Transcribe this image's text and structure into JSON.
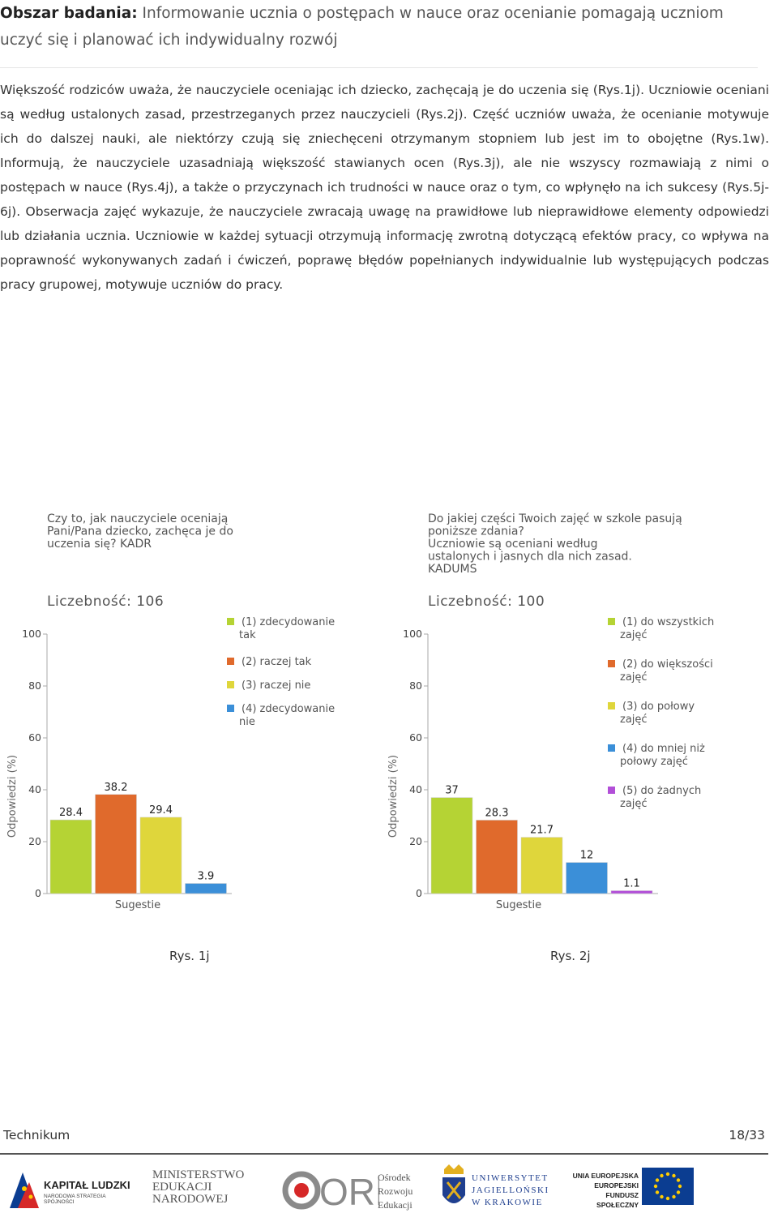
{
  "header": {
    "label": "Obszar badania:",
    "title": "Informowanie ucznia o postępach w nauce oraz ocenianie pomagają uczniom uczyć się i planować ich indywidualny rozwój"
  },
  "body": {
    "paragraph": "Większość rodziców uważa, że nauczyciele oceniając ich dziecko, zachęcają je do uczenia się (Rys.1j). Uczniowie oceniani są według ustalonych zasad, przestrzeganych przez nauczycieli (Rys.2j). Część uczniów uważa, że ocenianie motywuje ich do dalszej nauki, ale niektórzy czują się zniechęceni otrzymanym stopniem lub jest im to obojętne (Rys.1w). Informują, że nauczyciele uzasadniają większość stawianych ocen (Rys.3j), ale nie wszyscy rozmawiają z nimi o postępach w nauce (Rys.4j), a także o przyczynach ich trudności w nauce oraz o tym, co wpłynęło na ich sukcesy (Rys.5j-6j). Obserwacja zajęć wykazuje, że nauczyciele zwracają uwagę na prawidłowe lub nieprawidłowe elementy odpowiedzi lub działania ucznia. Uczniowie w każdej sytuacji otrzymują informację zwrotną dotyczącą efektów pracy, co wpływa na poprawność wykonywanych zadań i ćwiczeń, poprawę błędów popełnianych indywidualnie lub występujących podczas pracy grupowej, motywuje uczniów do pracy."
  },
  "chart_data": [
    {
      "type": "bar",
      "title": [
        "Czy to, jak nauczyciele oceniają",
        "Pani/Pana dziecko, zachęca je do",
        "uczenia się? KADR"
      ],
      "count_label": "Liczebność: 106",
      "xlabel": "Sugestie",
      "ylabel": "Odpowiedzi (%)",
      "ylim": [
        0,
        100
      ],
      "yticks": [
        "0",
        "20",
        "40",
        "60",
        "80",
        "100"
      ],
      "grid": false,
      "legend_position": "right",
      "categories": [
        [
          "(1) zdecydowanie",
          "tak"
        ],
        [
          "(2) raczej tak"
        ],
        [
          "(3) raczej nie"
        ],
        [
          "(4) zdecydowanie",
          "nie"
        ]
      ],
      "values": [
        28.4,
        38.2,
        29.4,
        3.9
      ],
      "value_labels": [
        "28.4",
        "38.2",
        "29.4",
        "3.9"
      ],
      "colors": [
        "#b5d334",
        "#e06a2c",
        "#dfd63b",
        "#3b8fd8"
      ]
    },
    {
      "type": "bar",
      "title": [
        "Do jakiej części Twoich zajęć w szkole pasują",
        "poniższe zdania?",
        "Uczniowie są oceniani według",
        "ustalonych i jasnych dla nich zasad.",
        "KADUMS"
      ],
      "count_label": "Liczebność: 100",
      "xlabel": "Sugestie",
      "ylabel": "Odpowiedzi (%)",
      "ylim": [
        0,
        100
      ],
      "yticks": [
        "0",
        "20",
        "40",
        "60",
        "80",
        "100"
      ],
      "grid": false,
      "legend_position": "right",
      "categories": [
        [
          "(1) do wszystkich",
          "zajęć"
        ],
        [
          "(2) do większości",
          "zajęć"
        ],
        [
          "(3) do połowy",
          "zajęć"
        ],
        [
          "(4) do mniej niż",
          "połowy zajęć"
        ],
        [
          "(5) do żadnych",
          "zajęć"
        ]
      ],
      "values": [
        37,
        28.3,
        21.7,
        12,
        1.1
      ],
      "value_labels": [
        "37",
        "28.3",
        "21.7",
        "12",
        "1.1"
      ],
      "colors": [
        "#b5d334",
        "#e06a2c",
        "#dfd63b",
        "#3b8fd8",
        "#b24fd8"
      ]
    }
  ],
  "captions": {
    "fig1": "Rys. 1j",
    "fig2": "Rys. 2j"
  },
  "footer": {
    "left": "Technikum",
    "page": "18/33"
  },
  "logos": {
    "kapital": {
      "title": "KAPITAŁ LUDZKI",
      "subtitle": "NARODOWA STRATEGIA SPÓJNOŚCI"
    },
    "men": {
      "lines": [
        "MINISTERSTWO",
        "EDUKACJI",
        "NARODOWEJ"
      ]
    },
    "ore": {
      "mark": "ORE",
      "lines": [
        "Ośrodek",
        "Rozwoju",
        "Edukacji"
      ]
    },
    "uj": {
      "lines": [
        "UNIWERSYTET",
        "JAGIELLOŃSKI",
        "W KRAKOWIE"
      ]
    },
    "ue": {
      "lines": [
        "UNIA EUROPEJSKA",
        "EUROPEJSKI",
        "FUNDUSZ SPOŁECZNY"
      ]
    }
  },
  "colors": {
    "logo_blue": "#0b3d91",
    "ue_yellow": "#ffcc00",
    "ore_red": "#d62828",
    "accent_grey": "#555555"
  }
}
